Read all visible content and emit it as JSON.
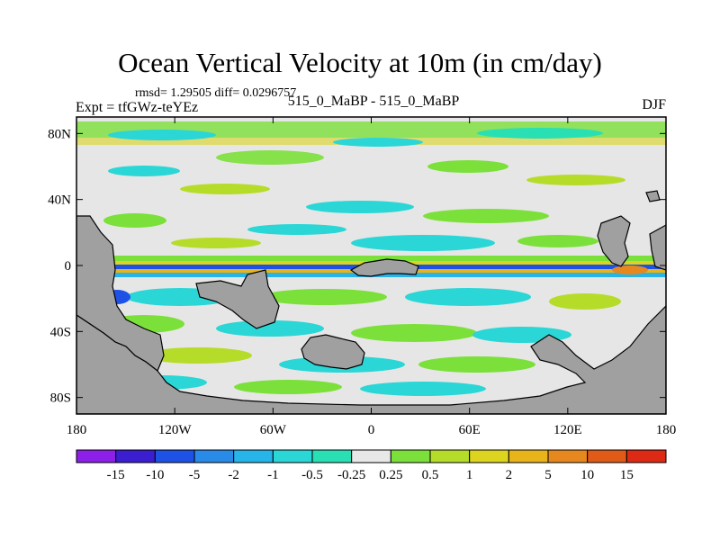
{
  "title": "Ocean Vertical Velocity at 10m (in cm/day)",
  "stats_line": "rmsd= 1.29505 diff= 0.0296757",
  "experiment_label": "Expt = tfGWz-teYEz",
  "case_label": "515_0_MaBP - 515_0_MaBP",
  "season_label": "DJF",
  "map": {
    "lon_ticks": [
      {
        "lon": -180,
        "label": "180"
      },
      {
        "lon": -120,
        "label": "120W"
      },
      {
        "lon": -60,
        "label": "60W"
      },
      {
        "lon": 0,
        "label": "0"
      },
      {
        "lon": 60,
        "label": "60E"
      },
      {
        "lon": 120,
        "label": "120E"
      },
      {
        "lon": 180,
        "label": "180"
      }
    ],
    "lat_ticks": [
      {
        "lat": 80,
        "label": "80N"
      },
      {
        "lat": 40,
        "label": "40N"
      },
      {
        "lat": 0,
        "label": "0"
      },
      {
        "lat": -40,
        "label": "40S"
      },
      {
        "lat": -80,
        "label": "80S"
      }
    ],
    "lon_range": [
      -180,
      180
    ],
    "lat_range": [
      -90,
      90
    ],
    "land_color": "#a0a0a0",
    "zero_band_color": "#e6e6e6"
  },
  "colorbar": {
    "colors": [
      "#8c20e8",
      "#3a1ed0",
      "#1e52e6",
      "#2a8ae8",
      "#27b4e8",
      "#2ad6d6",
      "#28e0b4",
      "#e8e8e8",
      "#7ce03a",
      "#b6dc2a",
      "#dcd41e",
      "#e8b41a",
      "#e6881e",
      "#e05a18",
      "#dc2a14"
    ],
    "labels": [
      "-15",
      "-10",
      "-5",
      "-2",
      "-1",
      "-0.5",
      "-0.25",
      "0.25",
      "0.5",
      "1",
      "2",
      "5",
      "10",
      "15"
    ]
  }
}
